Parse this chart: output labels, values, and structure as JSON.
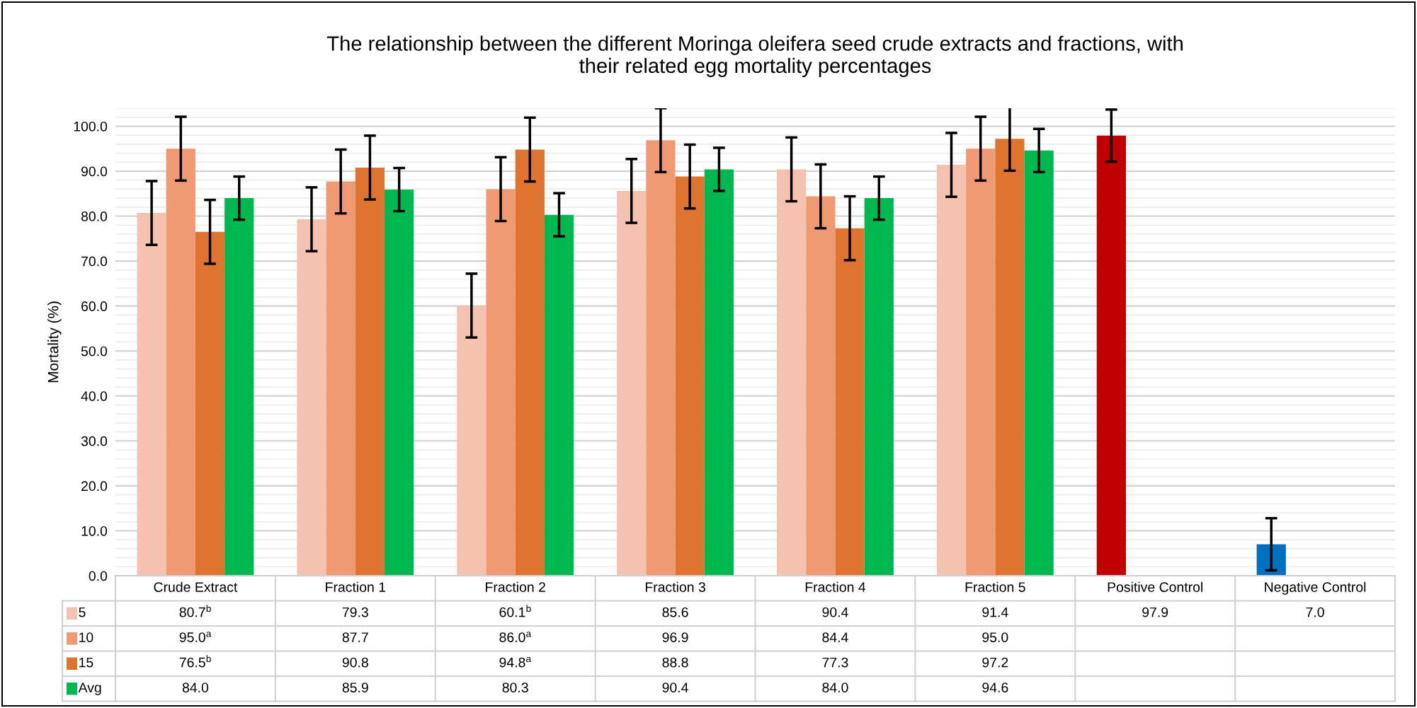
{
  "chart_data": {
    "type": "bar",
    "title": "The relationship between the different Moringa oleifera seed crude extracts and fractions, with\ntheir related egg mortality percentages",
    "ylabel": "Mortality (%)",
    "categories": [
      "Crude Extract",
      "Fraction 1",
      "Fraction 2",
      "Fraction 3",
      "Fraction 4",
      "Fraction 5",
      "Positive Control",
      "Negative Control"
    ],
    "series": [
      {
        "name": "5",
        "color": "#f4c2ae",
        "colors": [
          "#f4c2ae",
          "#f4c2ae",
          "#f4c2ae",
          "#f4c2ae",
          "#f4c2ae",
          "#f4c2ae",
          "#c00000",
          "#0070c0"
        ],
        "values": [
          80.7,
          79.3,
          60.1,
          85.6,
          90.4,
          91.4,
          97.9,
          7.0
        ],
        "errors": [
          7.1,
          7.1,
          7.1,
          7.1,
          7.1,
          7.1,
          5.8,
          5.8
        ],
        "value_labels": [
          "80.7$^{b}$",
          "79.3",
          "60.1$^{b}$",
          "85.6",
          "90.4",
          "91.4",
          "97.9",
          "7.0"
        ]
      },
      {
        "name": "10",
        "color": "#ef9a72",
        "values": [
          95.0,
          87.7,
          86.0,
          96.9,
          84.4,
          95.0,
          null,
          null
        ],
        "errors": [
          7.1,
          7.1,
          7.1,
          7.1,
          7.1,
          7.1,
          null,
          null
        ],
        "value_labels": [
          "95.0$^{a}$",
          "87.7",
          "86.0$^{a}$",
          "96.9",
          "84.4",
          "95.0",
          null,
          null
        ]
      },
      {
        "name": "15",
        "color": "#de7430",
        "values": [
          76.5,
          90.8,
          94.8,
          88.8,
          77.3,
          97.2,
          null,
          null
        ],
        "errors": [
          7.1,
          7.1,
          7.1,
          7.1,
          7.1,
          7.1,
          null,
          null
        ],
        "value_labels": [
          "76.5$^{b}$",
          "90.8",
          "94.8$^{a}$",
          "88.8",
          "77.3",
          "97.2",
          null,
          null
        ]
      },
      {
        "name": "Avg",
        "color": "#00b850",
        "values": [
          84.0,
          85.9,
          80.3,
          90.4,
          84.0,
          94.6,
          null,
          null
        ],
        "errors": [
          4.8,
          4.8,
          4.8,
          4.8,
          4.8,
          4.8,
          null,
          null
        ],
        "value_labels": [
          "84.0",
          "85.9",
          "80.3",
          "90.4",
          "84.0",
          "94.6",
          null,
          null
        ]
      }
    ],
    "ylim": [
      0,
      104
    ],
    "yticks": [
      {
        "value": 0,
        "label": "0.0"
      },
      {
        "value": 10,
        "label": "10.0"
      },
      {
        "value": 20,
        "label": "20.0"
      },
      {
        "value": 30,
        "label": "30.0"
      },
      {
        "value": 40,
        "label": "40.0"
      },
      {
        "value": 50,
        "label": "50.0"
      },
      {
        "value": 60,
        "label": "60.0"
      },
      {
        "value": 70,
        "label": "70.0"
      },
      {
        "value": 80,
        "label": "80.0"
      },
      {
        "value": 90,
        "label": "90.0"
      },
      {
        "value": 100,
        "label": "100.0"
      }
    ],
    "grid": "y",
    "legend": "bottom"
  }
}
